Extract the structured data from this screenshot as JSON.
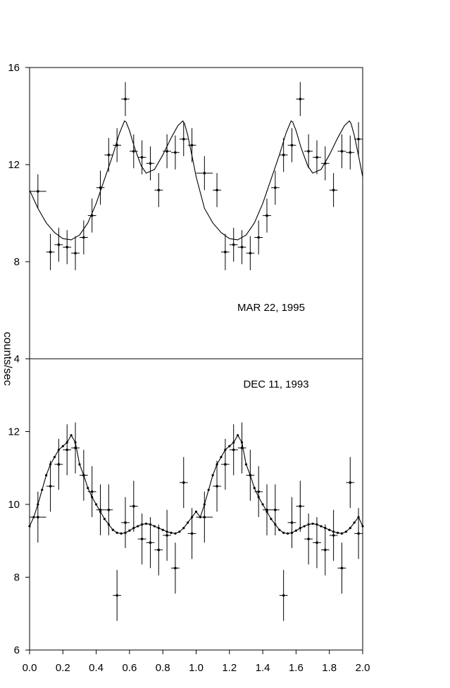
{
  "chart_data": [
    {
      "type": "scatter",
      "annotation": "MAR 22, 1995",
      "ylabel": "counts/sec",
      "xlim": [
        0.0,
        2.0
      ],
      "ylim": [
        4,
        16
      ],
      "yticks": [
        4,
        8,
        12,
        16
      ],
      "series": [
        {
          "x": [
            0.05,
            0.125,
            0.175,
            0.225,
            0.275,
            0.325,
            0.375,
            0.425,
            0.475,
            0.525,
            0.575,
            0.625,
            0.675,
            0.725,
            0.775,
            0.825,
            0.875,
            0.925,
            0.975,
            1.05,
            1.125,
            1.175,
            1.225,
            1.275,
            1.325,
            1.375,
            1.425,
            1.475,
            1.525,
            1.575,
            1.625,
            1.675,
            1.725,
            1.775,
            1.825,
            1.875,
            1.925,
            1.975
          ],
          "y": [
            10.9,
            8.4,
            8.7,
            8.6,
            8.35,
            9.0,
            9.9,
            11.05,
            12.4,
            12.8,
            14.7,
            12.55,
            12.3,
            12.05,
            10.95,
            12.55,
            12.5,
            13.05,
            12.8,
            11.65,
            10.95,
            8.4,
            8.7,
            8.6,
            8.35,
            9.0,
            9.9,
            11.05,
            12.4,
            12.8,
            14.7,
            12.55,
            12.3,
            12.05,
            10.95,
            12.55,
            12.5,
            13.05
          ],
          "xerr": [
            0.05,
            0.025,
            0.025,
            0.025,
            0.025,
            0.025,
            0.025,
            0.025,
            0.025,
            0.025,
            0.025,
            0.025,
            0.025,
            0.025,
            0.025,
            0.025,
            0.025,
            0.025,
            0.025,
            0.05,
            0.025,
            0.025,
            0.025,
            0.025,
            0.025,
            0.025,
            0.025,
            0.025,
            0.025,
            0.025,
            0.025,
            0.025,
            0.025,
            0.025,
            0.025,
            0.025,
            0.025,
            0.025
          ],
          "yerr": [
            0.7,
            0.75,
            0.7,
            0.7,
            0.7,
            0.7,
            0.7,
            0.7,
            0.7,
            0.7,
            0.7,
            0.7,
            0.7,
            0.7,
            0.7,
            0.7,
            0.7,
            0.7,
            0.7,
            0.7,
            0.7,
            0.75,
            0.7,
            0.7,
            0.7,
            0.7,
            0.7,
            0.7,
            0.7,
            0.7,
            0.7,
            0.7,
            0.7,
            0.7,
            0.7,
            0.7,
            0.7,
            0.7
          ]
        }
      ],
      "model_curve": {
        "x": [
          0.0,
          0.05,
          0.1,
          0.15,
          0.2,
          0.25,
          0.3,
          0.35,
          0.4,
          0.45,
          0.5,
          0.54,
          0.57,
          0.58,
          0.6,
          0.63,
          0.67,
          0.7,
          0.75,
          0.8,
          0.85,
          0.89,
          0.92,
          0.93,
          0.95,
          0.98,
          1.0,
          1.05,
          1.1,
          1.15,
          1.2,
          1.25,
          1.3,
          1.35,
          1.4,
          1.45,
          1.5,
          1.54,
          1.57,
          1.58,
          1.6,
          1.63,
          1.67,
          1.7,
          1.75,
          1.8,
          1.85,
          1.89,
          1.92,
          1.93,
          1.95,
          1.98,
          2.0
        ],
        "y": [
          10.95,
          10.2,
          9.6,
          9.2,
          8.95,
          8.9,
          9.1,
          9.6,
          10.4,
          11.4,
          12.4,
          13.3,
          13.8,
          13.75,
          13.4,
          12.7,
          11.95,
          11.65,
          11.8,
          12.4,
          13.1,
          13.6,
          13.8,
          13.7,
          13.2,
          12.2,
          11.5,
          10.2,
          9.6,
          9.2,
          8.95,
          8.9,
          9.1,
          9.6,
          10.4,
          11.4,
          12.4,
          13.3,
          13.8,
          13.75,
          13.4,
          12.7,
          11.95,
          11.65,
          11.8,
          12.4,
          13.1,
          13.6,
          13.8,
          13.7,
          13.2,
          12.2,
          11.5
        ]
      }
    },
    {
      "type": "scatter",
      "annotation": "DEC 11, 1993",
      "ylabel": "counts/sec",
      "xlabel": "",
      "xlim": [
        0.0,
        2.0
      ],
      "ylim": [
        6,
        14
      ],
      "yticks": [
        6,
        8,
        10,
        12
      ],
      "xticks": [
        "0.0",
        "0.2",
        "0.4",
        "0.6",
        "0.8",
        "1.0",
        "1.2",
        "1.4",
        "1.6",
        "1.8",
        "2.0"
      ],
      "series": [
        {
          "x": [
            0.05,
            0.125,
            0.175,
            0.225,
            0.275,
            0.325,
            0.375,
            0.425,
            0.475,
            0.525,
            0.575,
            0.625,
            0.675,
            0.725,
            0.775,
            0.825,
            0.875,
            0.925,
            0.975,
            1.05,
            1.125,
            1.175,
            1.225,
            1.275,
            1.325,
            1.375,
            1.425,
            1.475,
            1.525,
            1.575,
            1.625,
            1.675,
            1.725,
            1.775,
            1.825,
            1.875,
            1.925,
            1.975
          ],
          "y": [
            9.65,
            10.5,
            11.1,
            11.5,
            11.55,
            10.8,
            10.35,
            9.85,
            9.85,
            7.5,
            9.5,
            9.95,
            9.05,
            8.95,
            8.75,
            9.15,
            8.25,
            10.6,
            9.2,
            9.65,
            10.5,
            11.1,
            11.5,
            11.55,
            10.8,
            10.35,
            9.85,
            9.85,
            7.5,
            9.5,
            9.95,
            9.05,
            8.95,
            8.75,
            9.15,
            8.25,
            10.6,
            9.2
          ],
          "xerr": [
            0.05,
            0.025,
            0.025,
            0.025,
            0.025,
            0.025,
            0.025,
            0.025,
            0.025,
            0.025,
            0.025,
            0.025,
            0.025,
            0.025,
            0.025,
            0.025,
            0.025,
            0.025,
            0.025,
            0.05,
            0.025,
            0.025,
            0.025,
            0.025,
            0.025,
            0.025,
            0.025,
            0.025,
            0.025,
            0.025,
            0.025,
            0.025,
            0.025,
            0.025,
            0.025,
            0.025,
            0.025,
            0.025
          ],
          "yerr": [
            0.7,
            0.7,
            0.7,
            0.7,
            0.7,
            0.7,
            0.7,
            0.7,
            0.7,
            0.7,
            0.7,
            0.7,
            0.7,
            0.7,
            0.7,
            0.7,
            0.7,
            0.7,
            0.7,
            0.7,
            0.7,
            0.7,
            0.7,
            0.7,
            0.7,
            0.7,
            0.7,
            0.7,
            0.7,
            0.7,
            0.7,
            0.7,
            0.7,
            0.7,
            0.7,
            0.7,
            0.7,
            0.7
          ]
        }
      ],
      "model_curve": {
        "x": [
          0.0,
          0.025,
          0.05,
          0.075,
          0.1,
          0.125,
          0.15,
          0.175,
          0.2,
          0.225,
          0.25,
          0.275,
          0.3,
          0.325,
          0.35,
          0.375,
          0.4,
          0.425,
          0.45,
          0.475,
          0.5,
          0.525,
          0.55,
          0.575,
          0.6,
          0.625,
          0.65,
          0.675,
          0.7,
          0.725,
          0.75,
          0.775,
          0.8,
          0.825,
          0.85,
          0.875,
          0.9,
          0.925,
          0.95,
          0.975,
          1.0,
          1.025,
          1.05,
          1.075,
          1.1,
          1.125,
          1.15,
          1.175,
          1.2,
          1.225,
          1.25,
          1.275,
          1.3,
          1.325,
          1.35,
          1.375,
          1.4,
          1.425,
          1.45,
          1.475,
          1.5,
          1.525,
          1.55,
          1.575,
          1.6,
          1.625,
          1.65,
          1.675,
          1.7,
          1.725,
          1.75,
          1.775,
          1.8,
          1.825,
          1.85,
          1.875,
          1.9,
          1.925,
          1.95,
          1.975,
          2.0
        ],
        "y": [
          9.4,
          9.65,
          10.0,
          10.4,
          10.8,
          11.1,
          11.3,
          11.5,
          11.6,
          11.7,
          11.9,
          11.7,
          11.1,
          10.8,
          10.45,
          10.2,
          10.0,
          9.8,
          9.6,
          9.45,
          9.3,
          9.22,
          9.2,
          9.22,
          9.28,
          9.35,
          9.4,
          9.45,
          9.47,
          9.45,
          9.4,
          9.35,
          9.3,
          9.25,
          9.22,
          9.2,
          9.25,
          9.35,
          9.5,
          9.65,
          9.8,
          9.65,
          10.0,
          10.4,
          10.8,
          11.1,
          11.3,
          11.5,
          11.6,
          11.7,
          11.9,
          11.7,
          11.1,
          10.8,
          10.45,
          10.2,
          10.0,
          9.8,
          9.6,
          9.45,
          9.3,
          9.22,
          9.2,
          9.22,
          9.28,
          9.35,
          9.4,
          9.45,
          9.47,
          9.45,
          9.4,
          9.35,
          9.3,
          9.25,
          9.22,
          9.2,
          9.25,
          9.35,
          9.5,
          9.65,
          9.4
        ]
      }
    }
  ]
}
